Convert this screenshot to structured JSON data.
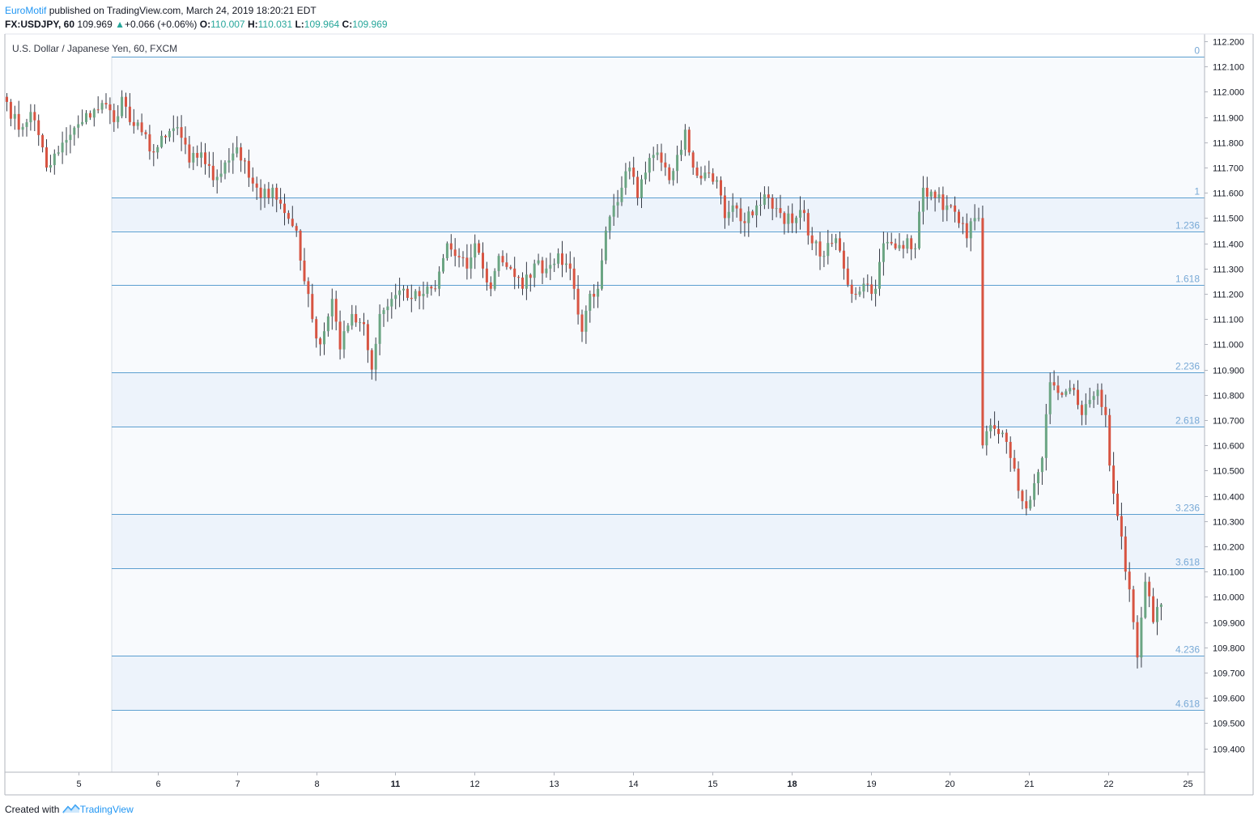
{
  "header": {
    "author": "EuroMotif",
    "published_text": "published on TradingView.com, March 24, 2019 18:20:21 EDT",
    "symbol": "FX:USDJPY, 60",
    "last": "109.969",
    "change_arrow": "▲",
    "change": "+0.066 (+0.06%)",
    "o_label": "O:",
    "o_value": "110.007",
    "h_label": "H:",
    "h_value": "110.031",
    "l_label": "L:",
    "l_value": "109.964",
    "c_label": "C:",
    "c_value": "109.969"
  },
  "legend": "U.S. Dollar / Japanese Yen, 60, FXCM",
  "footer": {
    "created_with": "Created with",
    "brand": "TradingView",
    "logo_icon": "tradingview-logo-icon"
  },
  "colors": {
    "up": "#6ba583",
    "down": "#d75442",
    "fib_line": "#5c9fd0",
    "fib_fill": "#edf3fb",
    "fib_label": "#78a9d6"
  },
  "chart_data": {
    "type": "candlestick",
    "title": "U.S. Dollar / Japanese Yen, 60, FXCM",
    "ylim": [
      109.35,
      112.23
    ],
    "y_ticks": [
      "112.200",
      "112.100",
      "112.000",
      "111.900",
      "111.800",
      "111.700",
      "111.600",
      "111.500",
      "111.400",
      "111.300",
      "111.200",
      "111.100",
      "111.000",
      "110.900",
      "110.800",
      "110.700",
      "110.600",
      "110.500",
      "110.400",
      "110.300",
      "110.200",
      "110.100",
      "110.000",
      "109.900",
      "109.800",
      "109.700",
      "109.600",
      "109.500",
      "109.400"
    ],
    "x_ticks": [
      {
        "label": "5",
        "bold": false
      },
      {
        "label": "6",
        "bold": false
      },
      {
        "label": "7",
        "bold": false
      },
      {
        "label": "8",
        "bold": false
      },
      {
        "label": "11",
        "bold": true
      },
      {
        "label": "12",
        "bold": false
      },
      {
        "label": "13",
        "bold": false
      },
      {
        "label": "14",
        "bold": false
      },
      {
        "label": "15",
        "bold": false
      },
      {
        "label": "18",
        "bold": true
      },
      {
        "label": "19",
        "bold": false
      },
      {
        "label": "20",
        "bold": false
      },
      {
        "label": "21",
        "bold": false
      },
      {
        "label": "22",
        "bold": false
      },
      {
        "label": "25",
        "bold": false
      }
    ],
    "fib_levels": [
      {
        "label": "0",
        "price": 112.14
      },
      {
        "label": "1",
        "price": 111.58
      },
      {
        "label": "1.236",
        "price": 111.448
      },
      {
        "label": "1.618",
        "price": 111.234
      },
      {
        "label": "2.236",
        "price": 110.888
      },
      {
        "label": "2.618",
        "price": 110.674
      },
      {
        "label": "3.236",
        "price": 110.328
      },
      {
        "label": "3.618",
        "price": 110.114
      },
      {
        "label": "4.236",
        "price": 109.768
      },
      {
        "label": "4.618",
        "price": 109.554
      }
    ],
    "waypoints": [
      [
        0,
        111.96
      ],
      [
        3,
        111.85
      ],
      [
        6,
        111.92
      ],
      [
        9,
        111.78
      ],
      [
        10,
        111.7
      ],
      [
        13,
        111.76
      ],
      [
        16,
        111.83
      ],
      [
        19,
        111.88
      ],
      [
        22,
        111.93
      ],
      [
        25,
        111.95
      ],
      [
        27,
        111.88
      ],
      [
        29,
        111.98
      ],
      [
        31,
        111.88
      ],
      [
        34,
        111.84
      ],
      [
        37,
        111.76
      ],
      [
        40,
        111.82
      ],
      [
        43,
        111.86
      ],
      [
        46,
        111.72
      ],
      [
        49,
        111.76
      ],
      [
        52,
        111.65
      ],
      [
        55,
        111.72
      ],
      [
        58,
        111.78
      ],
      [
        61,
        111.66
      ],
      [
        64,
        111.58
      ],
      [
        67,
        111.62
      ],
      [
        70,
        111.52
      ],
      [
        73,
        111.45
      ],
      [
        75,
        111.25
      ],
      [
        77,
        111.1
      ],
      [
        79,
        111.0
      ],
      [
        82,
        111.18
      ],
      [
        84,
        110.98
      ],
      [
        87,
        111.12
      ],
      [
        90,
        111.08
      ],
      [
        92,
        110.9
      ],
      [
        94,
        111.12
      ],
      [
        97,
        111.18
      ],
      [
        100,
        111.22
      ],
      [
        102,
        111.18
      ],
      [
        105,
        111.2
      ],
      [
        108,
        111.22
      ],
      [
        111,
        111.4
      ],
      [
        113,
        111.35
      ],
      [
        116,
        111.3
      ],
      [
        118,
        111.4
      ],
      [
        120,
        111.3
      ],
      [
        122,
        111.22
      ],
      [
        124,
        111.35
      ],
      [
        127,
        111.3
      ],
      [
        130,
        111.22
      ],
      [
        133,
        111.32
      ],
      [
        136,
        111.3
      ],
      [
        139,
        111.36
      ],
      [
        141,
        111.32
      ],
      [
        143,
        111.22
      ],
      [
        145,
        111.05
      ],
      [
        147,
        111.2
      ],
      [
        149,
        111.22
      ],
      [
        151,
        111.45
      ],
      [
        153,
        111.55
      ],
      [
        155,
        111.62
      ],
      [
        157,
        111.7
      ],
      [
        159,
        111.58
      ],
      [
        161,
        111.68
      ],
      [
        163,
        111.75
      ],
      [
        165,
        111.72
      ],
      [
        167,
        111.65
      ],
      [
        169,
        111.75
      ],
      [
        171,
        111.85
      ],
      [
        173,
        111.7
      ],
      [
        176,
        111.68
      ],
      [
        179,
        111.65
      ],
      [
        181,
        111.5
      ],
      [
        183,
        111.55
      ],
      [
        186,
        111.48
      ],
      [
        189,
        111.55
      ],
      [
        192,
        111.58
      ],
      [
        195,
        111.52
      ],
      [
        198,
        111.48
      ],
      [
        201,
        111.52
      ],
      [
        203,
        111.4
      ],
      [
        206,
        111.35
      ],
      [
        209,
        111.42
      ],
      [
        211,
        111.3
      ],
      [
        213,
        111.2
      ],
      [
        216,
        111.24
      ],
      [
        219,
        111.22
      ],
      [
        221,
        111.4
      ],
      [
        224,
        111.38
      ],
      [
        227,
        111.42
      ],
      [
        229,
        111.38
      ],
      [
        231,
        111.62
      ],
      [
        234,
        111.58
      ],
      [
        237,
        111.55
      ],
      [
        240,
        111.48
      ],
      [
        242,
        111.42
      ],
      [
        244,
        111.5
      ],
      [
        245,
        111.5
      ],
      [
        246,
        110.6
      ],
      [
        248,
        110.68
      ],
      [
        251,
        110.65
      ],
      [
        253,
        110.55
      ],
      [
        255,
        110.42
      ],
      [
        257,
        110.35
      ],
      [
        259,
        110.45
      ],
      [
        261,
        110.55
      ],
      [
        263,
        110.85
      ],
      [
        266,
        110.8
      ],
      [
        269,
        110.82
      ],
      [
        271,
        110.72
      ],
      [
        273,
        110.78
      ],
      [
        275,
        110.82
      ],
      [
        277,
        110.72
      ],
      [
        278,
        110.52
      ],
      [
        280,
        110.32
      ],
      [
        282,
        110.1
      ],
      [
        284,
        109.9
      ],
      [
        285,
        109.76
      ],
      [
        287,
        110.06
      ],
      [
        289,
        109.9
      ],
      [
        291,
        109.97
      ]
    ],
    "dates": [
      "5",
      "6",
      "7",
      "8",
      "11",
      "12",
      "13",
      "14",
      "15",
      "18",
      "19",
      "20",
      "21",
      "22",
      "25"
    ]
  }
}
